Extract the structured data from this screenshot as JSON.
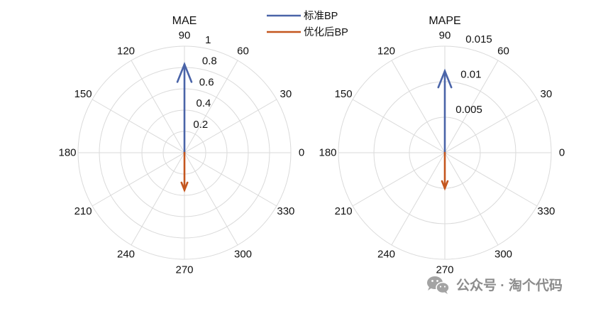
{
  "legend": {
    "items": [
      {
        "label": "标准BP",
        "color": "#4a64a8"
      },
      {
        "label": "优化后BP",
        "color": "#c4561e"
      }
    ]
  },
  "chart_data": [
    {
      "type": "line",
      "polar": true,
      "compass_arrows": true,
      "grid": true,
      "title": "MAE",
      "r_range": [
        0,
        1
      ],
      "r_ticks": [
        0.2,
        0.4,
        0.6,
        0.8,
        1
      ],
      "r_tick_labels": [
        "0.2",
        "0.4",
        "0.6",
        "0.8",
        "1"
      ],
      "theta_ticks_deg": [
        0,
        30,
        60,
        90,
        120,
        150,
        180,
        210,
        240,
        270,
        300,
        330
      ],
      "theta_tick_labels": [
        "0",
        "30",
        "60",
        "90",
        "120",
        "150",
        "180",
        "210",
        "240",
        "270",
        "300",
        "330"
      ],
      "series": [
        {
          "legend_index": 0,
          "angle_deg": 90,
          "magnitude": 0.83
        },
        {
          "legend_index": 1,
          "angle_deg": 270,
          "magnitude": 0.35
        }
      ]
    },
    {
      "type": "line",
      "polar": true,
      "compass_arrows": true,
      "grid": true,
      "title": "MAPE",
      "r_range": [
        0,
        0.015
      ],
      "r_ticks": [
        0.005,
        0.01,
        0.015
      ],
      "r_tick_labels": [
        "0.005",
        "0.01",
        "0.015"
      ],
      "theta_ticks_deg": [
        0,
        30,
        60,
        90,
        120,
        150,
        180,
        210,
        240,
        270,
        300,
        330
      ],
      "theta_tick_labels": [
        "0",
        "30",
        "60",
        "90",
        "120",
        "150",
        "180",
        "210",
        "240",
        "270",
        "300",
        "330"
      ],
      "series": [
        {
          "legend_index": 0,
          "angle_deg": 90,
          "magnitude": 0.0115
        },
        {
          "legend_index": 1,
          "angle_deg": 270,
          "magnitude": 0.005
        }
      ]
    }
  ],
  "watermark": {
    "icon": "wechat-icon",
    "text": "公众号 · 淘个代码"
  }
}
